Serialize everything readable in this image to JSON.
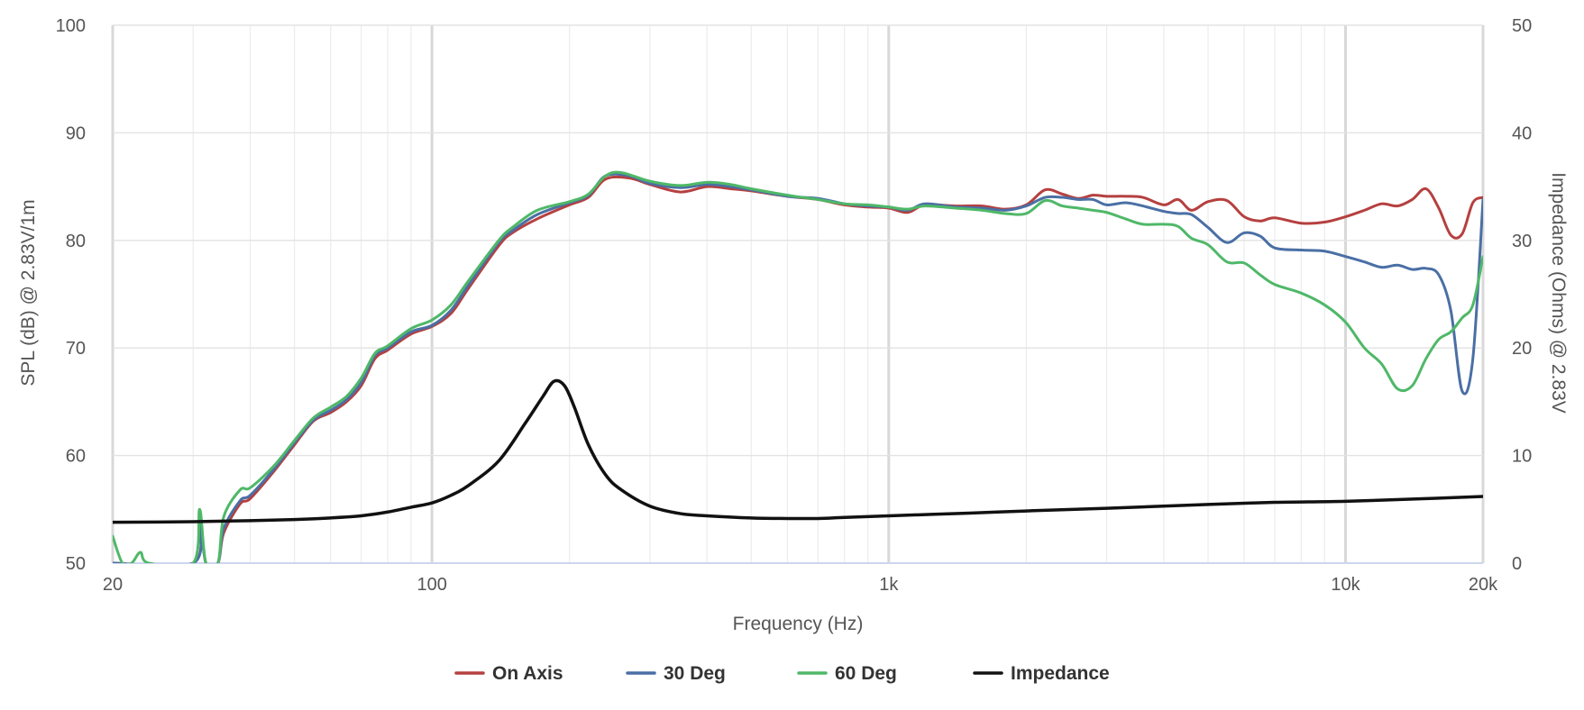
{
  "chart_data": {
    "type": "line",
    "title": "",
    "xlabel": "Frequency (Hz)",
    "ylabel": "SPL (dB) @ 2.83V/1m",
    "y2label": "Impedance (Ohms) @ 2.83V",
    "xscale": "log",
    "xlim": [
      20,
      20000
    ],
    "ylim": [
      50,
      100
    ],
    "y2lim": [
      0,
      50
    ],
    "grid": true,
    "legend_position": "bottom",
    "x_ticks": [
      {
        "value": 20,
        "label": "20"
      },
      {
        "value": 100,
        "label": "100"
      },
      {
        "value": 1000,
        "label": "1k"
      },
      {
        "value": 10000,
        "label": "10k"
      },
      {
        "value": 20000,
        "label": "20k"
      }
    ],
    "y_ticks": [
      {
        "value": 50,
        "label": "50"
      },
      {
        "value": 60,
        "label": "60"
      },
      {
        "value": 70,
        "label": "70"
      },
      {
        "value": 80,
        "label": "80"
      },
      {
        "value": 90,
        "label": "90"
      },
      {
        "value": 100,
        "label": "100"
      }
    ],
    "y2_ticks": [
      {
        "value": 0,
        "label": "0"
      },
      {
        "value": 10,
        "label": "10"
      },
      {
        "value": 20,
        "label": "20"
      },
      {
        "value": 30,
        "label": "30"
      },
      {
        "value": 40,
        "label": "40"
      },
      {
        "value": 50,
        "label": "50"
      }
    ],
    "series": [
      {
        "name": "On Axis",
        "color": "#b5403f",
        "axis": "left",
        "points": [
          [
            20,
            50
          ],
          [
            30,
            50
          ],
          [
            31,
            54
          ],
          [
            32,
            50
          ],
          [
            34,
            50
          ],
          [
            35,
            52.8
          ],
          [
            38,
            55.5
          ],
          [
            40,
            56
          ],
          [
            45,
            58.5
          ],
          [
            50,
            61
          ],
          [
            55,
            63.2
          ],
          [
            60,
            64
          ],
          [
            65,
            65
          ],
          [
            70,
            66.5
          ],
          [
            75,
            69
          ],
          [
            80,
            69.8
          ],
          [
            90,
            71.3
          ],
          [
            100,
            72
          ],
          [
            110,
            73.2
          ],
          [
            120,
            75.5
          ],
          [
            140,
            79.5
          ],
          [
            150,
            80.7
          ],
          [
            170,
            82
          ],
          [
            200,
            83.3
          ],
          [
            220,
            84
          ],
          [
            240,
            85.7
          ],
          [
            270,
            85.8
          ],
          [
            300,
            85.2
          ],
          [
            350,
            84.5
          ],
          [
            400,
            85
          ],
          [
            450,
            84.8
          ],
          [
            500,
            84.6
          ],
          [
            600,
            84.1
          ],
          [
            700,
            83.8
          ],
          [
            800,
            83.3
          ],
          [
            900,
            83.1
          ],
          [
            1000,
            83
          ],
          [
            1100,
            82.6
          ],
          [
            1200,
            83.3
          ],
          [
            1400,
            83.2
          ],
          [
            1600,
            83.2
          ],
          [
            1800,
            82.9
          ],
          [
            2000,
            83.3
          ],
          [
            2200,
            84.7
          ],
          [
            2400,
            84.3
          ],
          [
            2600,
            83.9
          ],
          [
            2800,
            84.2
          ],
          [
            3000,
            84.1
          ],
          [
            3300,
            84.1
          ],
          [
            3600,
            84
          ],
          [
            4000,
            83.3
          ],
          [
            4300,
            83.8
          ],
          [
            4600,
            82.8
          ],
          [
            5000,
            83.6
          ],
          [
            5500,
            83.7
          ],
          [
            6000,
            82.2
          ],
          [
            6500,
            81.8
          ],
          [
            7000,
            82.1
          ],
          [
            8000,
            81.6
          ],
          [
            9000,
            81.7
          ],
          [
            10000,
            82.2
          ],
          [
            11000,
            82.8
          ],
          [
            12000,
            83.4
          ],
          [
            13000,
            83.2
          ],
          [
            14000,
            83.8
          ],
          [
            15000,
            84.8
          ],
          [
            16000,
            83
          ],
          [
            17000,
            80.5
          ],
          [
            18000,
            80.6
          ],
          [
            19000,
            83.5
          ],
          [
            20000,
            84
          ]
        ]
      },
      {
        "name": "30 Deg",
        "color": "#4a6fa5",
        "axis": "left",
        "points": [
          [
            20,
            50
          ],
          [
            30,
            50
          ],
          [
            31,
            54
          ],
          [
            32,
            50
          ],
          [
            34,
            50
          ],
          [
            35,
            53.2
          ],
          [
            38,
            55.8
          ],
          [
            40,
            56.3
          ],
          [
            45,
            58.7
          ],
          [
            50,
            61.2
          ],
          [
            55,
            63.3
          ],
          [
            60,
            64.2
          ],
          [
            65,
            65.2
          ],
          [
            70,
            66.8
          ],
          [
            75,
            69.3
          ],
          [
            80,
            70
          ],
          [
            90,
            71.5
          ],
          [
            100,
            72.1
          ],
          [
            110,
            73.5
          ],
          [
            120,
            75.8
          ],
          [
            140,
            79.8
          ],
          [
            150,
            80.9
          ],
          [
            170,
            82.4
          ],
          [
            200,
            83.5
          ],
          [
            220,
            84.2
          ],
          [
            240,
            86
          ],
          [
            270,
            86
          ],
          [
            300,
            85.3
          ],
          [
            350,
            84.9
          ],
          [
            400,
            85.2
          ],
          [
            450,
            85
          ],
          [
            500,
            84.7
          ],
          [
            600,
            84.1
          ],
          [
            700,
            83.9
          ],
          [
            800,
            83.4
          ],
          [
            900,
            83.2
          ],
          [
            1000,
            83.1
          ],
          [
            1100,
            82.8
          ],
          [
            1200,
            83.4
          ],
          [
            1400,
            83.1
          ],
          [
            1600,
            83
          ],
          [
            1800,
            82.8
          ],
          [
            2000,
            83.2
          ],
          [
            2200,
            84
          ],
          [
            2400,
            84
          ],
          [
            2600,
            83.8
          ],
          [
            2800,
            83.8
          ],
          [
            3000,
            83.3
          ],
          [
            3300,
            83.5
          ],
          [
            3600,
            83.2
          ],
          [
            4000,
            82.7
          ],
          [
            4300,
            82.5
          ],
          [
            4600,
            82.4
          ],
          [
            5000,
            81.2
          ],
          [
            5500,
            79.8
          ],
          [
            6000,
            80.7
          ],
          [
            6500,
            80.4
          ],
          [
            7000,
            79.3
          ],
          [
            8000,
            79.1
          ],
          [
            9000,
            79
          ],
          [
            10000,
            78.5
          ],
          [
            11000,
            78
          ],
          [
            12000,
            77.5
          ],
          [
            13000,
            77.7
          ],
          [
            14000,
            77.3
          ],
          [
            15000,
            77.4
          ],
          [
            16000,
            76.8
          ],
          [
            17000,
            73.5
          ],
          [
            18000,
            66
          ],
          [
            19000,
            69
          ],
          [
            20000,
            83.8
          ]
        ]
      },
      {
        "name": "60 Deg",
        "color": "#4fb868",
        "axis": "left",
        "points": [
          [
            20,
            52.5
          ],
          [
            21,
            50
          ],
          [
            22,
            50
          ],
          [
            23,
            51
          ],
          [
            24,
            50
          ],
          [
            30,
            50
          ],
          [
            31,
            55
          ],
          [
            32,
            50
          ],
          [
            34,
            50
          ],
          [
            35,
            54.3
          ],
          [
            38,
            56.8
          ],
          [
            40,
            57
          ],
          [
            45,
            59
          ],
          [
            50,
            61.4
          ],
          [
            55,
            63.5
          ],
          [
            60,
            64.5
          ],
          [
            65,
            65.5
          ],
          [
            70,
            67.2
          ],
          [
            75,
            69.5
          ],
          [
            80,
            70.2
          ],
          [
            90,
            71.8
          ],
          [
            100,
            72.6
          ],
          [
            110,
            74
          ],
          [
            120,
            76.2
          ],
          [
            140,
            80
          ],
          [
            150,
            81.2
          ],
          [
            170,
            82.8
          ],
          [
            200,
            83.6
          ],
          [
            220,
            84.3
          ],
          [
            240,
            86
          ],
          [
            260,
            86.3
          ],
          [
            300,
            85.5
          ],
          [
            350,
            85.1
          ],
          [
            400,
            85.4
          ],
          [
            450,
            85.2
          ],
          [
            500,
            84.8
          ],
          [
            600,
            84.2
          ],
          [
            700,
            83.8
          ],
          [
            800,
            83.4
          ],
          [
            900,
            83.3
          ],
          [
            1000,
            83.1
          ],
          [
            1100,
            82.9
          ],
          [
            1200,
            83.2
          ],
          [
            1400,
            83
          ],
          [
            1600,
            82.8
          ],
          [
            1800,
            82.5
          ],
          [
            2000,
            82.5
          ],
          [
            2200,
            83.7
          ],
          [
            2400,
            83.2
          ],
          [
            2600,
            83
          ],
          [
            2800,
            82.8
          ],
          [
            3000,
            82.6
          ],
          [
            3300,
            82
          ],
          [
            3600,
            81.5
          ],
          [
            4000,
            81.5
          ],
          [
            4300,
            81.3
          ],
          [
            4600,
            80.2
          ],
          [
            5000,
            79.6
          ],
          [
            5500,
            78
          ],
          [
            6000,
            77.9
          ],
          [
            6500,
            76.8
          ],
          [
            7000,
            75.9
          ],
          [
            8000,
            75.1
          ],
          [
            9000,
            74
          ],
          [
            10000,
            72.4
          ],
          [
            11000,
            70
          ],
          [
            12000,
            68.5
          ],
          [
            13000,
            66.2
          ],
          [
            14000,
            66.5
          ],
          [
            15000,
            69
          ],
          [
            16000,
            70.8
          ],
          [
            17000,
            71.5
          ],
          [
            18000,
            72.8
          ],
          [
            19000,
            74
          ],
          [
            20000,
            78.5
          ]
        ]
      },
      {
        "name": "Impedance",
        "color": "#111111",
        "axis": "right",
        "points": [
          [
            20,
            3.8
          ],
          [
            30,
            3.85
          ],
          [
            40,
            3.95
          ],
          [
            50,
            4.05
          ],
          [
            60,
            4.2
          ],
          [
            70,
            4.4
          ],
          [
            80,
            4.75
          ],
          [
            90,
            5.2
          ],
          [
            100,
            5.6
          ],
          [
            110,
            6.3
          ],
          [
            120,
            7.2
          ],
          [
            140,
            9.5
          ],
          [
            160,
            13
          ],
          [
            175,
            15.5
          ],
          [
            185,
            16.9
          ],
          [
            195,
            16.5
          ],
          [
            205,
            14.5
          ],
          [
            220,
            11
          ],
          [
            240,
            8.2
          ],
          [
            260,
            6.8
          ],
          [
            300,
            5.3
          ],
          [
            350,
            4.6
          ],
          [
            400,
            4.4
          ],
          [
            500,
            4.2
          ],
          [
            600,
            4.15
          ],
          [
            700,
            4.15
          ],
          [
            800,
            4.25
          ],
          [
            1000,
            4.4
          ],
          [
            1500,
            4.65
          ],
          [
            2000,
            4.85
          ],
          [
            3000,
            5.1
          ],
          [
            5000,
            5.45
          ],
          [
            7000,
            5.65
          ],
          [
            10000,
            5.75
          ],
          [
            15000,
            6
          ],
          [
            20000,
            6.2
          ]
        ]
      }
    ]
  }
}
